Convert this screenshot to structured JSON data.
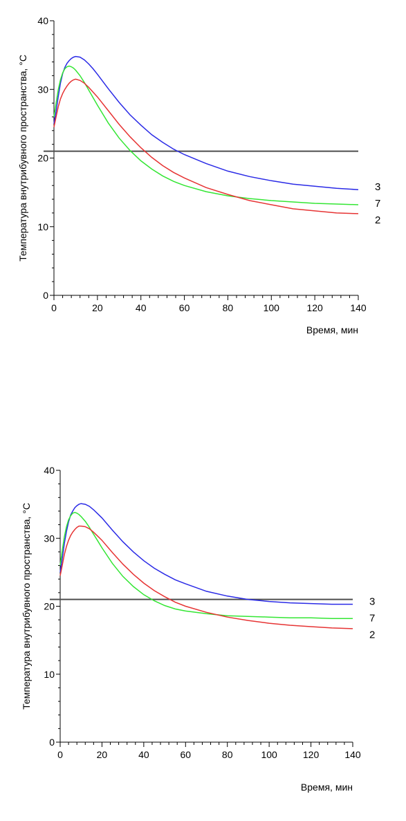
{
  "chart_data": [
    {
      "type": "line",
      "xlabel": "Время, мин",
      "ylabel": "Температура внутрибувного пространства, °С",
      "xlim": [
        0,
        140
      ],
      "ylim": [
        0,
        40
      ],
      "xticks": [
        0,
        20,
        40,
        60,
        80,
        100,
        120,
        140
      ],
      "yticks": [
        0,
        10,
        20,
        30,
        40
      ],
      "grid": false,
      "legend": "none",
      "hline": {
        "y": 21,
        "color": "#4d4d4d"
      },
      "series": [
        {
          "name": "3",
          "color": "#2a2ae6",
          "points": [
            [
              0,
              25
            ],
            [
              1,
              26.8
            ],
            [
              2,
              29
            ],
            [
              3,
              30.9
            ],
            [
              4,
              32.3
            ],
            [
              5,
              33.2
            ],
            [
              6,
              33.8
            ],
            [
              7,
              34.2
            ],
            [
              8,
              34.5
            ],
            [
              9,
              34.7
            ],
            [
              10,
              34.8
            ],
            [
              12,
              34.7
            ],
            [
              14,
              34.3
            ],
            [
              16,
              33.7
            ],
            [
              18,
              33
            ],
            [
              20,
              32.2
            ],
            [
              25,
              30.1
            ],
            [
              30,
              28.1
            ],
            [
              35,
              26.3
            ],
            [
              40,
              24.8
            ],
            [
              45,
              23.4
            ],
            [
              50,
              22.3
            ],
            [
              55,
              21.3
            ],
            [
              60,
              20.5
            ],
            [
              70,
              19.2
            ],
            [
              80,
              18.1
            ],
            [
              90,
              17.3
            ],
            [
              100,
              16.7
            ],
            [
              110,
              16.2
            ],
            [
              120,
              15.9
            ],
            [
              130,
              15.6
            ],
            [
              140,
              15.4
            ]
          ]
        },
        {
          "name": "7",
          "color": "#33e633",
          "points": [
            [
              0,
              26
            ],
            [
              1,
              28
            ],
            [
              2,
              30
            ],
            [
              3,
              31.4
            ],
            [
              4,
              32.4
            ],
            [
              5,
              33
            ],
            [
              6,
              33.3
            ],
            [
              7,
              33.4
            ],
            [
              8,
              33.3
            ],
            [
              9,
              33.1
            ],
            [
              10,
              32.8
            ],
            [
              12,
              32
            ],
            [
              14,
              31
            ],
            [
              16,
              29.9
            ],
            [
              18,
              28.8
            ],
            [
              20,
              27.7
            ],
            [
              25,
              25.1
            ],
            [
              30,
              22.9
            ],
            [
              35,
              21.1
            ],
            [
              40,
              19.6
            ],
            [
              45,
              18.4
            ],
            [
              50,
              17.4
            ],
            [
              55,
              16.6
            ],
            [
              60,
              16
            ],
            [
              70,
              15.1
            ],
            [
              80,
              14.5
            ],
            [
              90,
              14.1
            ],
            [
              100,
              13.8
            ],
            [
              110,
              13.6
            ],
            [
              120,
              13.4
            ],
            [
              130,
              13.3
            ],
            [
              140,
              13.2
            ]
          ]
        },
        {
          "name": "2",
          "color": "#e63333",
          "points": [
            [
              0,
              24.5
            ],
            [
              1,
              26
            ],
            [
              2,
              27.5
            ],
            [
              3,
              28.6
            ],
            [
              4,
              29.4
            ],
            [
              5,
              30
            ],
            [
              6,
              30.5
            ],
            [
              7,
              30.9
            ],
            [
              8,
              31.2
            ],
            [
              9,
              31.4
            ],
            [
              10,
              31.5
            ],
            [
              12,
              31.3
            ],
            [
              14,
              30.9
            ],
            [
              16,
              30.3
            ],
            [
              18,
              29.6
            ],
            [
              20,
              28.9
            ],
            [
              25,
              26.9
            ],
            [
              30,
              24.9
            ],
            [
              35,
              23.1
            ],
            [
              40,
              21.5
            ],
            [
              45,
              20.1
            ],
            [
              50,
              18.9
            ],
            [
              55,
              17.9
            ],
            [
              60,
              17.1
            ],
            [
              70,
              15.7
            ],
            [
              80,
              14.7
            ],
            [
              90,
              13.8
            ],
            [
              100,
              13.2
            ],
            [
              110,
              12.6
            ],
            [
              120,
              12.3
            ],
            [
              130,
              12
            ],
            [
              140,
              11.9
            ]
          ]
        }
      ]
    },
    {
      "type": "line",
      "xlabel": "Время, мин",
      "ylabel": "Температура внутрибувного пространства, °С",
      "xlim": [
        0,
        140
      ],
      "ylim": [
        0,
        40
      ],
      "xticks": [
        0,
        20,
        40,
        60,
        80,
        100,
        120,
        140
      ],
      "yticks": [
        0,
        10,
        20,
        30,
        40
      ],
      "grid": false,
      "legend": "none",
      "hline": {
        "y": 21,
        "color": "#4d4d4d"
      },
      "series": [
        {
          "name": "3",
          "color": "#2a2ae6",
          "points": [
            [
              0,
              25
            ],
            [
              1,
              27
            ],
            [
              2,
              29.2
            ],
            [
              3,
              31
            ],
            [
              4,
              32.4
            ],
            [
              5,
              33.4
            ],
            [
              6,
              34
            ],
            [
              7,
              34.5
            ],
            [
              8,
              34.8
            ],
            [
              9,
              35
            ],
            [
              10,
              35.1
            ],
            [
              12,
              35
            ],
            [
              14,
              34.7
            ],
            [
              16,
              34.2
            ],
            [
              18,
              33.6
            ],
            [
              20,
              33
            ],
            [
              25,
              31.2
            ],
            [
              30,
              29.5
            ],
            [
              35,
              28
            ],
            [
              40,
              26.7
            ],
            [
              45,
              25.6
            ],
            [
              50,
              24.7
            ],
            [
              55,
              23.9
            ],
            [
              60,
              23.3
            ],
            [
              70,
              22.2
            ],
            [
              80,
              21.5
            ],
            [
              90,
              21
            ],
            [
              100,
              20.7
            ],
            [
              110,
              20.5
            ],
            [
              120,
              20.4
            ],
            [
              130,
              20.3
            ],
            [
              140,
              20.3
            ]
          ]
        },
        {
          "name": "7",
          "color": "#33e633",
          "points": [
            [
              0,
              26
            ],
            [
              1,
              28.2
            ],
            [
              2,
              30.2
            ],
            [
              3,
              31.7
            ],
            [
              4,
              32.7
            ],
            [
              5,
              33.3
            ],
            [
              6,
              33.7
            ],
            [
              7,
              33.8
            ],
            [
              8,
              33.7
            ],
            [
              9,
              33.5
            ],
            [
              10,
              33.2
            ],
            [
              12,
              32.5
            ],
            [
              14,
              31.6
            ],
            [
              16,
              30.6
            ],
            [
              18,
              29.6
            ],
            [
              20,
              28.6
            ],
            [
              25,
              26.3
            ],
            [
              30,
              24.4
            ],
            [
              35,
              22.9
            ],
            [
              40,
              21.7
            ],
            [
              45,
              20.8
            ],
            [
              50,
              20.1
            ],
            [
              55,
              19.6
            ],
            [
              60,
              19.3
            ],
            [
              70,
              18.9
            ],
            [
              80,
              18.6
            ],
            [
              90,
              18.5
            ],
            [
              100,
              18.4
            ],
            [
              110,
              18.3
            ],
            [
              120,
              18.3
            ],
            [
              130,
              18.2
            ],
            [
              140,
              18.2
            ]
          ]
        },
        {
          "name": "2",
          "color": "#e63333",
          "points": [
            [
              0,
              24.5
            ],
            [
              1,
              26
            ],
            [
              2,
              27.6
            ],
            [
              3,
              28.8
            ],
            [
              4,
              29.7
            ],
            [
              5,
              30.4
            ],
            [
              6,
              30.9
            ],
            [
              7,
              31.3
            ],
            [
              8,
              31.6
            ],
            [
              9,
              31.8
            ],
            [
              10,
              31.8
            ],
            [
              12,
              31.7
            ],
            [
              14,
              31.4
            ],
            [
              16,
              30.9
            ],
            [
              18,
              30.3
            ],
            [
              20,
              29.7
            ],
            [
              25,
              27.9
            ],
            [
              30,
              26.2
            ],
            [
              35,
              24.7
            ],
            [
              40,
              23.4
            ],
            [
              45,
              22.3
            ],
            [
              50,
              21.4
            ],
            [
              55,
              20.6
            ],
            [
              60,
              20
            ],
            [
              70,
              19.1
            ],
            [
              80,
              18.4
            ],
            [
              90,
              17.9
            ],
            [
              100,
              17.5
            ],
            [
              110,
              17.2
            ],
            [
              120,
              17
            ],
            [
              130,
              16.8
            ],
            [
              140,
              16.7
            ]
          ]
        }
      ]
    }
  ]
}
